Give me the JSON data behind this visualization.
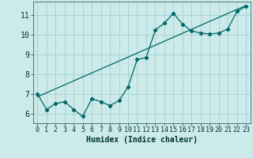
{
  "xlabel": "Humidex (Indice chaleur)",
  "background_color": "#cceaea",
  "grid_color": "#99cccc",
  "line_color": "#006666",
  "xlim": [
    -0.5,
    23.5
  ],
  "ylim": [
    5.5,
    11.7
  ],
  "yticks": [
    6,
    7,
    8,
    9,
    10,
    11
  ],
  "xticks": [
    0,
    1,
    2,
    3,
    4,
    5,
    6,
    7,
    8,
    9,
    10,
    11,
    12,
    13,
    14,
    15,
    16,
    17,
    18,
    19,
    20,
    21,
    22,
    23
  ],
  "scatter_x": [
    0,
    1,
    2,
    3,
    4,
    5,
    6,
    7,
    8,
    9,
    10,
    11,
    12,
    13,
    14,
    15,
    16,
    17,
    18,
    19,
    20,
    21,
    22,
    23
  ],
  "scatter_y": [
    7.0,
    6.2,
    6.5,
    6.6,
    6.2,
    5.85,
    6.75,
    6.6,
    6.4,
    6.65,
    7.35,
    8.75,
    8.85,
    10.25,
    10.6,
    11.1,
    10.55,
    10.2,
    10.1,
    10.05,
    10.1,
    10.3,
    11.2,
    11.45
  ],
  "trend_x": [
    0,
    23
  ],
  "trend_y": [
    6.85,
    11.5
  ],
  "xlabel_fontsize": 7,
  "tick_fontsize": 6,
  "ytick_fontsize": 7
}
